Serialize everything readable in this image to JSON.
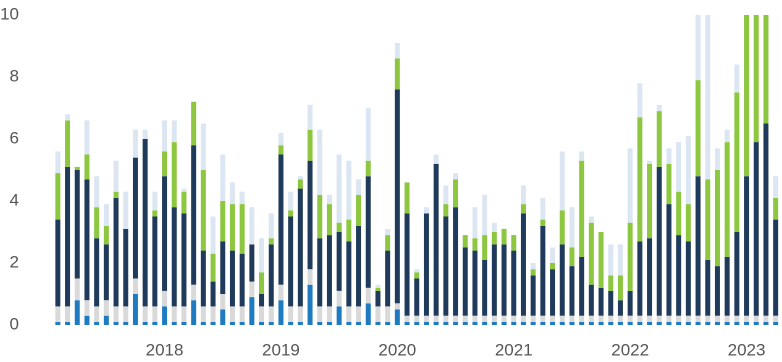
{
  "chart_data": {
    "type": "stacked_bar",
    "categories": [
      null,
      null,
      null,
      null,
      null,
      null,
      null,
      null,
      null,
      null,
      null,
      "2018",
      null,
      null,
      null,
      null,
      null,
      null,
      null,
      null,
      null,
      null,
      null,
      "2019",
      null,
      null,
      null,
      null,
      null,
      null,
      null,
      null,
      null,
      null,
      null,
      "2020",
      null,
      null,
      null,
      null,
      null,
      null,
      null,
      null,
      null,
      null,
      null,
      "2021",
      null,
      null,
      null,
      null,
      null,
      null,
      null,
      null,
      null,
      null,
      null,
      "2022",
      null,
      null,
      null,
      null,
      null,
      null,
      null,
      null,
      null,
      null,
      null,
      "2023",
      null,
      null,
      null
    ],
    "series": [
      {
        "color": "#1f7bc1",
        "values": [
          0.1,
          0.1,
          0.8,
          0.3,
          0.1,
          0.3,
          0.1,
          0.1,
          1.0,
          0.1,
          0.1,
          0.6,
          0.1,
          0.1,
          0.8,
          0.1,
          0.1,
          0.5,
          0.1,
          0.1,
          0.9,
          0.1,
          0.1,
          0.8,
          0.1,
          0.1,
          1.3,
          0.1,
          0.1,
          0.6,
          0.1,
          0.1,
          0.7,
          0.1,
          0.1,
          0.5,
          0.1,
          0.1,
          0.1,
          0.1,
          0.1,
          0.1,
          0.1,
          0.1,
          0.1,
          0.1,
          0.1,
          0.1,
          0.1,
          0.1,
          0.1,
          0.1,
          0.1,
          0.1,
          0.1,
          0.1,
          0.1,
          0.1,
          0.1,
          0.1,
          0.1,
          0.1,
          0.1,
          0.1,
          0.1,
          0.1,
          0.1,
          0.1,
          0.1,
          0.1,
          0.1,
          0.1,
          0.1,
          0.1,
          0.1
        ]
      },
      {
        "color": "#d9d9d9",
        "values": [
          0.5,
          0.5,
          0.7,
          0.5,
          0.5,
          0.5,
          0.5,
          0.5,
          0.5,
          0.5,
          0.5,
          0.5,
          0.5,
          0.5,
          0.5,
          0.5,
          0.5,
          0.5,
          0.5,
          0.5,
          0.5,
          0.5,
          0.5,
          0.5,
          0.5,
          0.5,
          0.5,
          0.5,
          0.5,
          0.5,
          0.5,
          0.5,
          0.5,
          0.5,
          0.5,
          0.2,
          0.2,
          0.2,
          0.2,
          0.2,
          0.2,
          0.2,
          0.2,
          0.2,
          0.2,
          0.2,
          0.2,
          0.2,
          0.2,
          0.2,
          0.2,
          0.2,
          0.2,
          0.2,
          0.2,
          0.2,
          0.2,
          0.2,
          0.2,
          0.2,
          0.2,
          0.2,
          0.2,
          0.2,
          0.2,
          0.2,
          0.2,
          0.2,
          0.2,
          0.2,
          0.2,
          0.2,
          0.2,
          0.2,
          0.2
        ]
      },
      {
        "color": "#1f3a5a",
        "values": [
          2.8,
          4.5,
          3.5,
          3.9,
          2.2,
          1.8,
          3.5,
          2.5,
          3.9,
          5.4,
          2.9,
          3.7,
          3.2,
          3.0,
          4.5,
          1.8,
          0.8,
          1.7,
          1.8,
          1.7,
          1.2,
          0.4,
          2.0,
          4.2,
          2.9,
          3.8,
          3.5,
          2.2,
          2.3,
          1.9,
          2.1,
          2.6,
          3.6,
          0.5,
          1.8,
          6.9,
          3.3,
          1.2,
          3.3,
          4.9,
          3.2,
          3.5,
          2.2,
          2.1,
          1.8,
          2.3,
          2.3,
          2.1,
          3.3,
          1.3,
          2.9,
          1.5,
          2.3,
          1.6,
          1.9,
          1.0,
          0.9,
          0.8,
          0.5,
          0.8,
          2.4,
          2.5,
          4.8,
          3.6,
          2.6,
          2.4,
          4.5,
          1.8,
          1.6,
          1.9,
          2.7,
          4.5,
          5.6,
          6.2,
          3.1
        ]
      },
      {
        "color": "#8dc63f",
        "values": [
          1.5,
          1.5,
          0.1,
          0.8,
          1.0,
          0.6,
          0.2,
          0,
          0,
          0,
          0.2,
          0.8,
          2.1,
          0.7,
          1.4,
          2.6,
          0.9,
          1.3,
          1.5,
          1.6,
          0,
          0.7,
          0.2,
          0.3,
          0.2,
          0.3,
          1.0,
          1.4,
          1.0,
          0.3,
          0.7,
          1.0,
          0.5,
          0.1,
          0.5,
          1.0,
          1.0,
          0.2,
          0,
          0,
          0.4,
          0.9,
          0.4,
          0.4,
          0.8,
          0.4,
          0.5,
          0.5,
          0.3,
          0.2,
          0.2,
          0.2,
          1.1,
          0.6,
          3.1,
          2.0,
          1.8,
          0.5,
          0.8,
          2.2,
          4.0,
          2.4,
          1.8,
          1.3,
          1.4,
          1.2,
          3.1,
          2.6,
          3.1,
          3.7,
          4.5,
          5.2,
          4.1,
          3.5,
          0.7
        ]
      },
      {
        "color": "#dce6f2",
        "values": [
          0.7,
          0.2,
          0,
          1.1,
          1.0,
          0.7,
          1.0,
          1.2,
          0.9,
          0.3,
          0.6,
          1.0,
          0.7,
          0.1,
          0,
          1.5,
          1.2,
          1.5,
          0.7,
          0.4,
          1.2,
          1.1,
          0.8,
          0.4,
          0.6,
          0.1,
          0.8,
          2.1,
          0.3,
          2.2,
          1.9,
          0.5,
          1.7,
          0.1,
          0.2,
          0.5,
          0,
          0.1,
          0.2,
          0.3,
          0.6,
          0.2,
          0,
          1.0,
          1.3,
          0.3,
          0,
          0,
          0.6,
          0.2,
          0.7,
          0.5,
          1.9,
          1.3,
          0.3,
          0.2,
          0,
          1.0,
          1.0,
          2.4,
          1.1,
          0.1,
          0.2,
          0.5,
          1.6,
          2.2,
          2.1,
          5.3,
          0.7,
          0.4,
          0.9,
          0.5,
          0.5,
          0.5,
          0.7
        ]
      }
    ],
    "ylim": [
      0,
      10
    ],
    "yticks": [
      0,
      2,
      4,
      6,
      8,
      10
    ],
    "grid": false
  }
}
